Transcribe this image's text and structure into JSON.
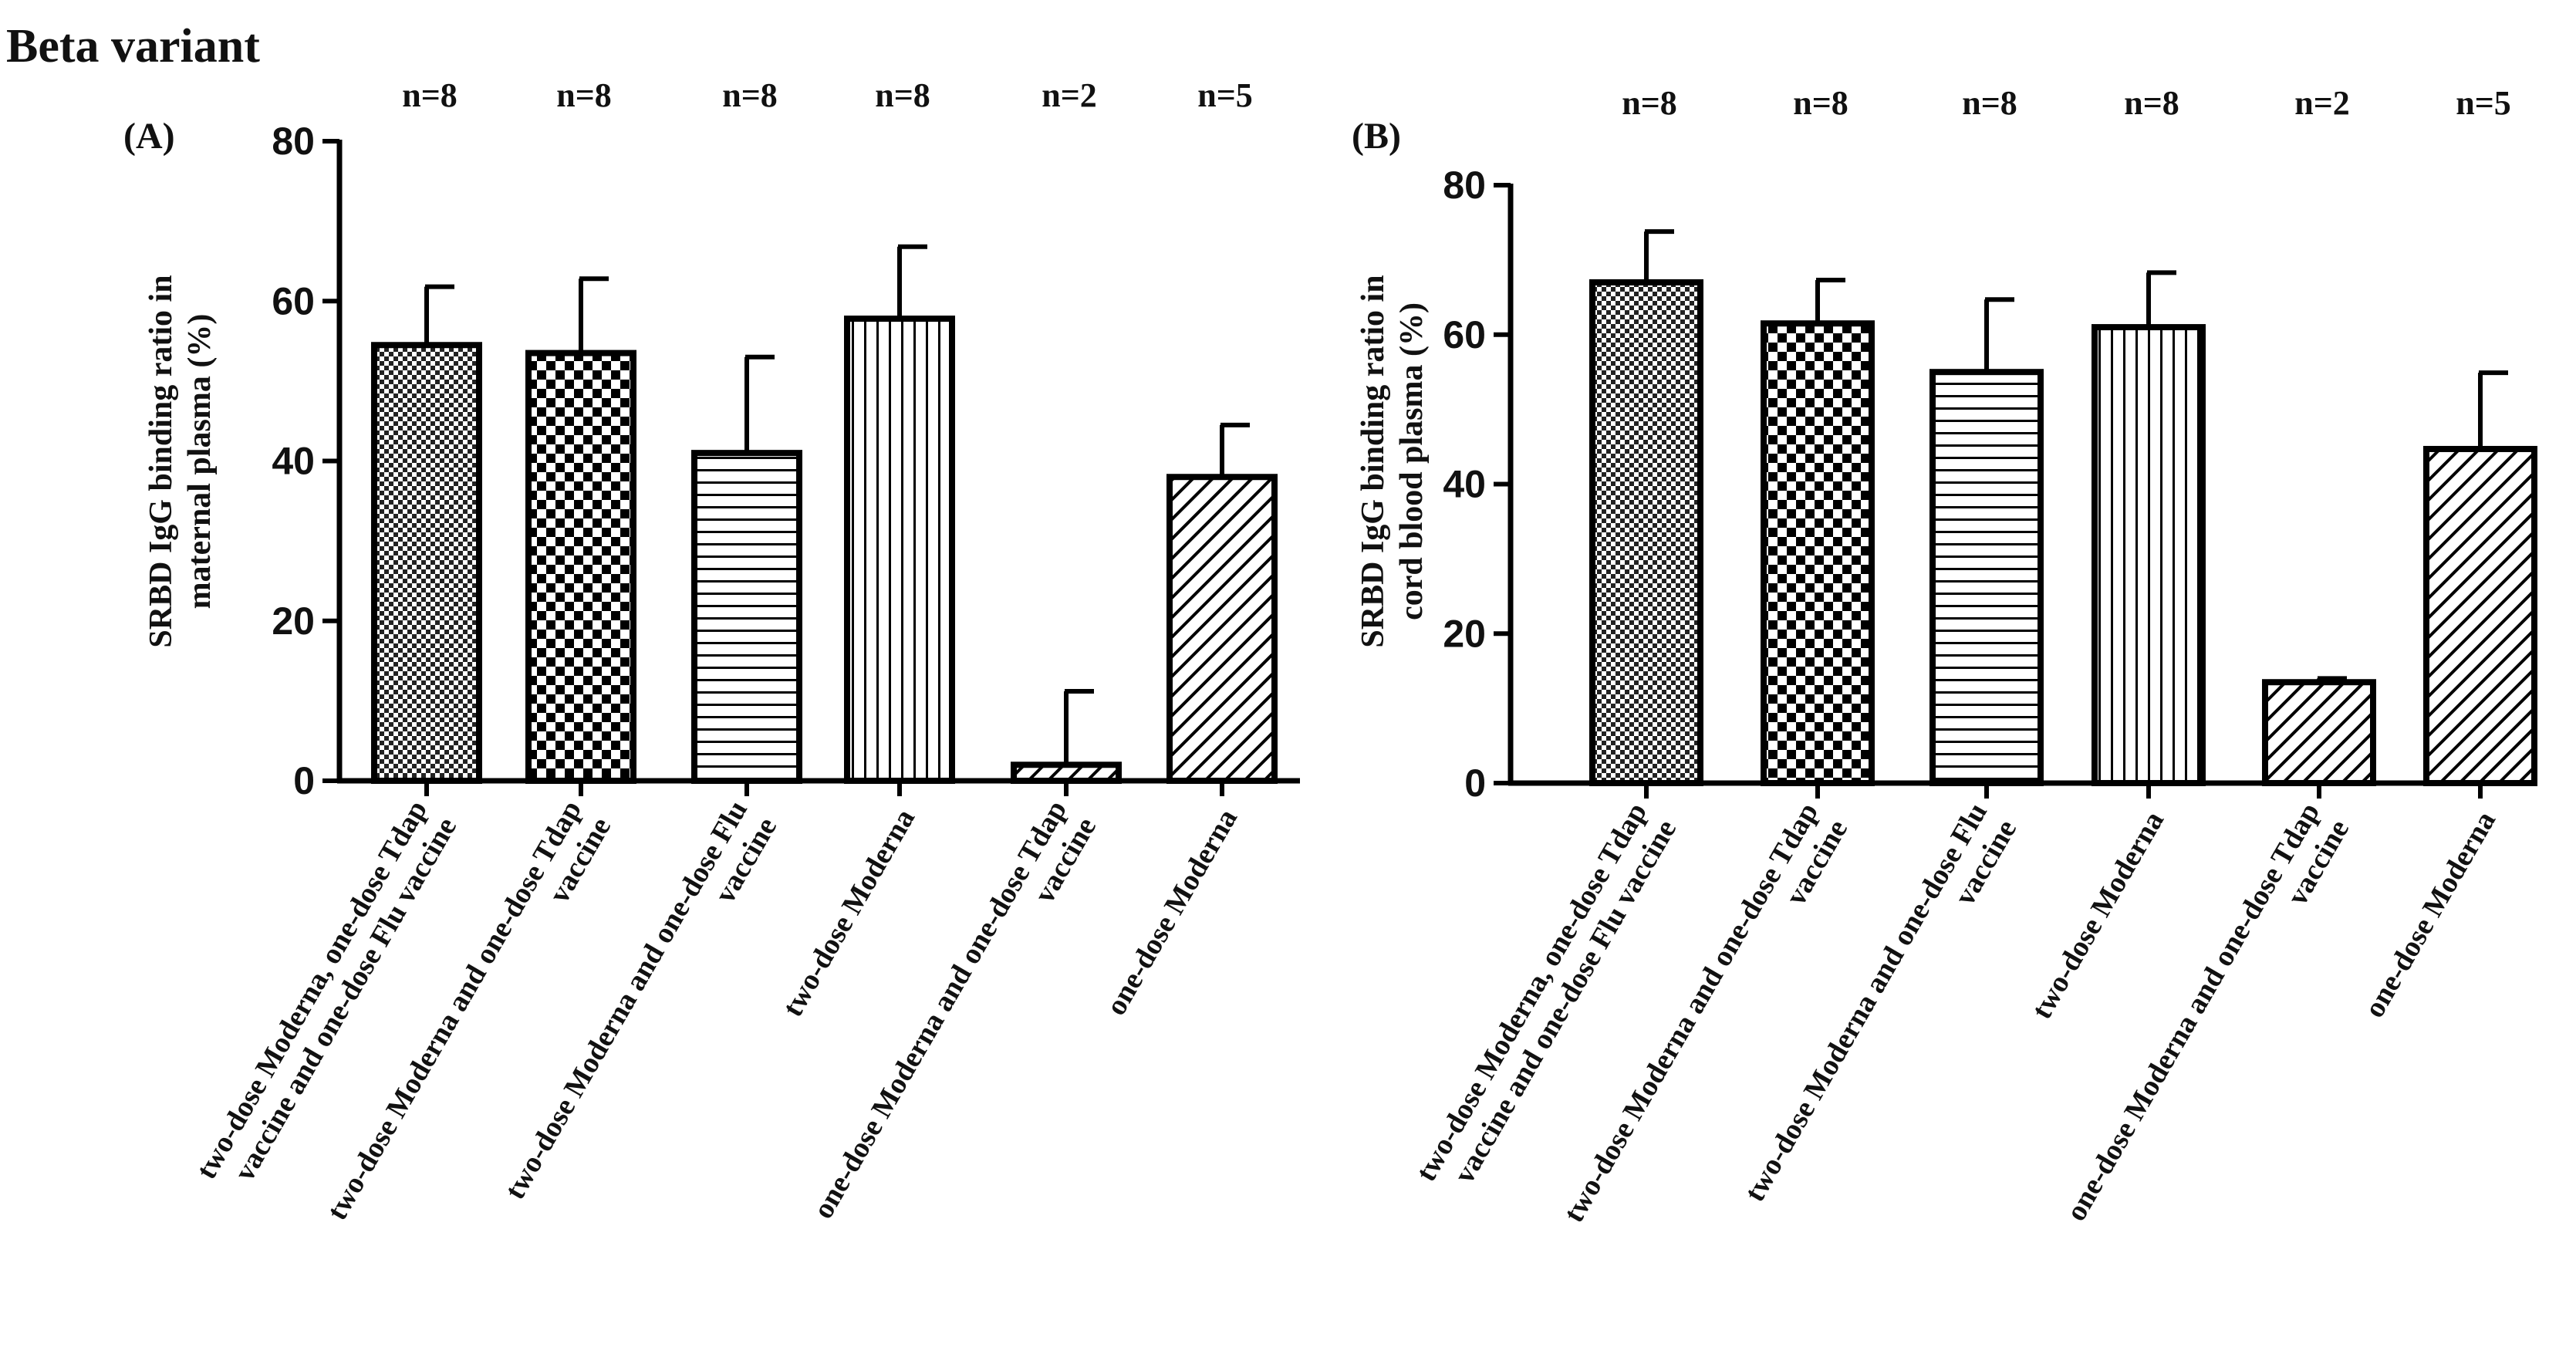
{
  "figure_title": "Beta variant",
  "chart_data": [
    {
      "type": "bar",
      "panel_label": "(A)",
      "title": "",
      "xlabel": "",
      "ylabel_lines": [
        "SRBD IgG binding ratio in",
        "maternal plasma (%)"
      ],
      "ylim": [
        0,
        80
      ],
      "yticks": [
        "0",
        "20",
        "40",
        "60",
        "80"
      ],
      "categories": [
        [
          "two-dose Moderna, one-dose Tdap",
          "vaccine and one-dose Flu vaccine"
        ],
        [
          "two-dose Moderna and one-dose Tdap",
          "vaccine"
        ],
        [
          "two-dose Moderna and one-dose Flu",
          "vaccine"
        ],
        [
          "two-dose Moderna"
        ],
        [
          "one-dose Moderna and one-dose Tdap",
          "vaccine"
        ],
        [
          "one-dose Moderna"
        ]
      ],
      "n_labels": [
        "n=8",
        "n=8",
        "n=8",
        "n=8",
        "n=2",
        "n=5"
      ],
      "values": [
        54.5,
        53.5,
        41,
        57.8,
        2,
        38
      ],
      "errors": [
        7.3,
        9.3,
        12,
        9,
        9.2,
        6.5
      ],
      "patterns": [
        "fine-check",
        "check",
        "horizontal",
        "vertical",
        "diagonal",
        "diagonal"
      ]
    },
    {
      "type": "bar",
      "panel_label": "(B)",
      "title": "",
      "xlabel": "",
      "ylabel_lines": [
        "SRBD IgG binding ratio in",
        "cord blood plasma (%)"
      ],
      "ylim": [
        0,
        80
      ],
      "yticks": [
        "0",
        "20",
        "40",
        "60",
        "80"
      ],
      "categories": [
        [
          "two-dose Moderna, one-dose Tdap",
          "vaccine and one-dose Flu vaccine"
        ],
        [
          "two-dose Moderna and one-dose Tdap",
          "vaccine"
        ],
        [
          "two-dose Moderna and one-dose Flu",
          "vaccine"
        ],
        [
          "two-dose Moderna"
        ],
        [
          "one-dose Moderna and one-dose Tdap",
          "vaccine"
        ],
        [
          "one-dose Moderna"
        ]
      ],
      "n_labels": [
        "n=8",
        "n=8",
        "n=8",
        "n=8",
        "n=2",
        "n=5"
      ],
      "values": [
        67,
        61.5,
        55,
        61,
        13.5,
        44.7
      ],
      "errors": [
        6.8,
        5.8,
        9.7,
        7.3,
        0.5,
        10.2
      ],
      "patterns": [
        "fine-check",
        "check",
        "horizontal",
        "vertical",
        "diagonal",
        "diagonal"
      ]
    }
  ]
}
